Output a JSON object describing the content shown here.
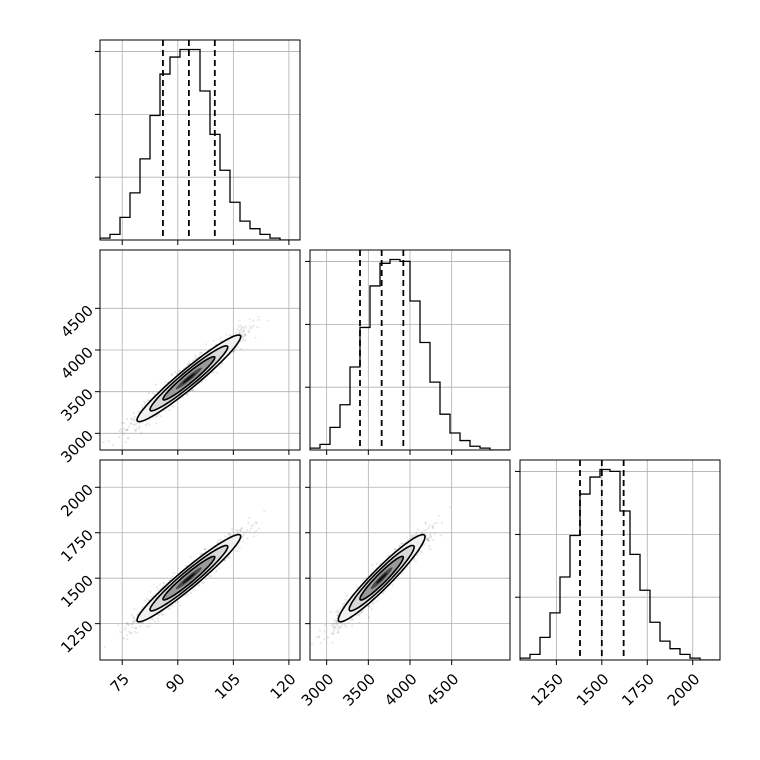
{
  "chart_data": {
    "type": "corner",
    "grid": true,
    "parameters": [
      {
        "label": "",
        "range": [
          69,
          123
        ],
        "ticks": [
          75,
          90,
          105,
          120
        ],
        "tick_labels": [
          "75",
          "90",
          "105",
          "120"
        ],
        "quantiles": [
          86.0,
          93.0,
          100.0
        ],
        "hist_edges": [
          69,
          71.7,
          74.4,
          77.1,
          79.8,
          82.5,
          85.2,
          87.9,
          90.6,
          93.3,
          96.0,
          98.7,
          101.4,
          104.1,
          106.8,
          109.5,
          112.2,
          114.9,
          117.6,
          120.3,
          123
        ],
        "hist_counts": [
          1,
          3,
          12,
          25,
          43,
          66,
          88,
          97,
          101,
          101,
          79,
          56,
          37,
          20,
          10,
          6,
          3,
          1,
          0,
          0
        ]
      },
      {
        "label": "",
        "range": [
          2800,
          5200
        ],
        "ticks": [
          3000,
          3500,
          4000,
          4500
        ],
        "tick_labels": [
          "3000",
          "3500",
          "4000",
          "4500"
        ],
        "quantiles": [
          3400,
          3660,
          3920
        ],
        "hist_edges": [
          2800,
          2920,
          3040,
          3160,
          3280,
          3400,
          3520,
          3640,
          3760,
          3880,
          4000,
          4120,
          4240,
          4360,
          4480,
          4600,
          4720,
          4840,
          4960,
          5080,
          5200
        ],
        "hist_counts": [
          1,
          3,
          12,
          24,
          44,
          65,
          87,
          99,
          101,
          100,
          79,
          57,
          36,
          19,
          9,
          5,
          2,
          1,
          0,
          0
        ]
      },
      {
        "label": "",
        "range": [
          1050,
          2150
        ],
        "ticks": [
          1250,
          1500,
          1750,
          2000
        ],
        "tick_labels": [
          "1250",
          "1500",
          "1750",
          "2000"
        ],
        "quantiles": [
          1380,
          1500,
          1620
        ],
        "hist_edges": [
          1050,
          1105,
          1160,
          1215,
          1270,
          1325,
          1380,
          1435,
          1490,
          1545,
          1600,
          1655,
          1710,
          1765,
          1820,
          1875,
          1930,
          1985,
          2040,
          2095,
          2150
        ],
        "hist_counts": [
          1,
          3,
          12,
          25,
          44,
          66,
          88,
          97,
          101,
          100,
          79,
          56,
          37,
          20,
          10,
          6,
          3,
          1,
          0,
          0
        ]
      }
    ],
    "correlations": {
      "1-0": 0.96,
      "2-0": 0.96,
      "2-1": 0.95
    },
    "scatter_color": "#808080",
    "contour_fill_colors": [
      "#f2f2f2",
      "#d9d9d9",
      "#9a9a9a",
      "#4a4a4a",
      "#101010"
    ]
  }
}
